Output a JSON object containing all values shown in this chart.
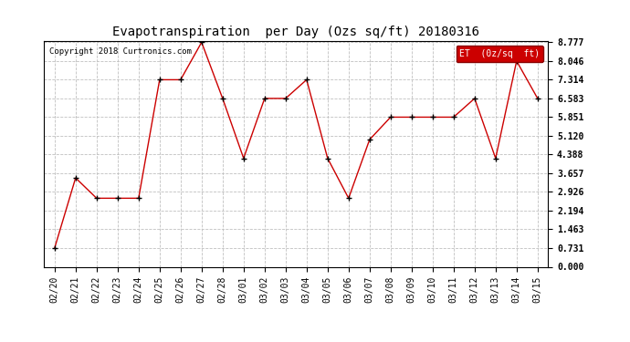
{
  "title": "Evapotranspiration  per Day (Ozs sq/ft) 20180316",
  "copyright": "Copyright 2018 Curtronics.com",
  "legend_label": "ET  (0z/sq  ft)",
  "x_labels": [
    "02/20",
    "02/21",
    "02/22",
    "02/23",
    "02/24",
    "02/25",
    "02/26",
    "02/27",
    "02/28",
    "03/01",
    "03/02",
    "03/03",
    "03/04",
    "03/05",
    "03/06",
    "03/07",
    "03/08",
    "03/09",
    "03/10",
    "03/11",
    "03/12",
    "03/13",
    "03/14",
    "03/15"
  ],
  "y_values": [
    0.731,
    3.474,
    2.68,
    2.68,
    2.68,
    7.314,
    7.314,
    8.777,
    6.583,
    4.242,
    6.583,
    6.583,
    7.314,
    4.242,
    2.68,
    4.973,
    5.851,
    5.851,
    5.851,
    5.851,
    6.583,
    4.242,
    8.046,
    6.583
  ],
  "y_ticks": [
    0.0,
    0.731,
    1.463,
    2.194,
    2.926,
    3.657,
    4.388,
    5.12,
    5.851,
    6.583,
    7.314,
    8.046,
    8.777
  ],
  "y_min": 0.0,
  "y_max": 8.777,
  "line_color": "#cc0000",
  "marker_color": "#000000",
  "bg_color": "#ffffff",
  "grid_color": "#c0c0c0",
  "title_fontsize": 10,
  "tick_fontsize": 7,
  "copyright_fontsize": 6.5,
  "legend_bg": "#cc0000",
  "legend_text_color": "#ffffff",
  "legend_fontsize": 7
}
